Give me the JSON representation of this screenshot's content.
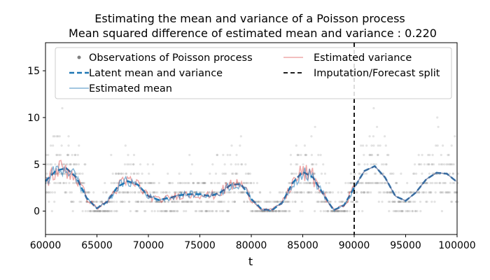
{
  "chart_data": {
    "type": "scatter",
    "title": "Estimating the mean and variance of a Poisson process",
    "subtitle": "Mean squared difference of estimated mean and variance : 0.220",
    "xlabel": "t",
    "ylabel": "",
    "xlim": [
      60000,
      100000
    ],
    "ylim": [
      -2.5,
      18
    ],
    "xticks": [
      60000,
      65000,
      70000,
      75000,
      80000,
      85000,
      90000,
      95000,
      100000
    ],
    "yticks": [
      0,
      5,
      10,
      15
    ],
    "grid": false,
    "legend_position": "top",
    "split_x": 90000,
    "colors": {
      "observations": "#808080",
      "latent": "#1f77b4",
      "estimated_mean": "#1f77b4",
      "estimated_variance": "#d62728",
      "split": "#000000"
    },
    "series": [
      {
        "name": "Observations of Poisson process",
        "style": "points"
      },
      {
        "name": "Latent mean and variance",
        "style": "dashed",
        "x": [
          60000,
          61000,
          62000,
          63000,
          64000,
          65000,
          66000,
          67000,
          68000,
          69000,
          70000,
          71000,
          72000,
          73000,
          74000,
          75000,
          76000,
          77000,
          78000,
          79000,
          80000,
          81000,
          82000,
          83000,
          84000,
          85000,
          86000,
          87000,
          88000,
          89000,
          90000,
          91000,
          92000,
          93000,
          94000,
          95000,
          96000,
          97000,
          98000,
          99000,
          100000
        ],
        "y": [
          3.2,
          4.3,
          4.6,
          3.6,
          1.4,
          0.3,
          1.0,
          2.6,
          3.2,
          2.8,
          1.6,
          1.2,
          1.4,
          1.7,
          1.8,
          1.8,
          1.6,
          2.0,
          2.8,
          2.9,
          1.3,
          0.2,
          0.1,
          0.9,
          3.0,
          4.2,
          3.6,
          1.8,
          0.1,
          0.6,
          2.5,
          4.3,
          4.8,
          3.6,
          1.6,
          1.1,
          2.0,
          3.4,
          4.1,
          4.0,
          3.1
        ]
      },
      {
        "name": "Estimated mean",
        "style": "line"
      },
      {
        "name": "Estimated variance",
        "style": "line"
      },
      {
        "name": "Imputation/Forecast split",
        "style": "vertical-dashed"
      }
    ]
  }
}
